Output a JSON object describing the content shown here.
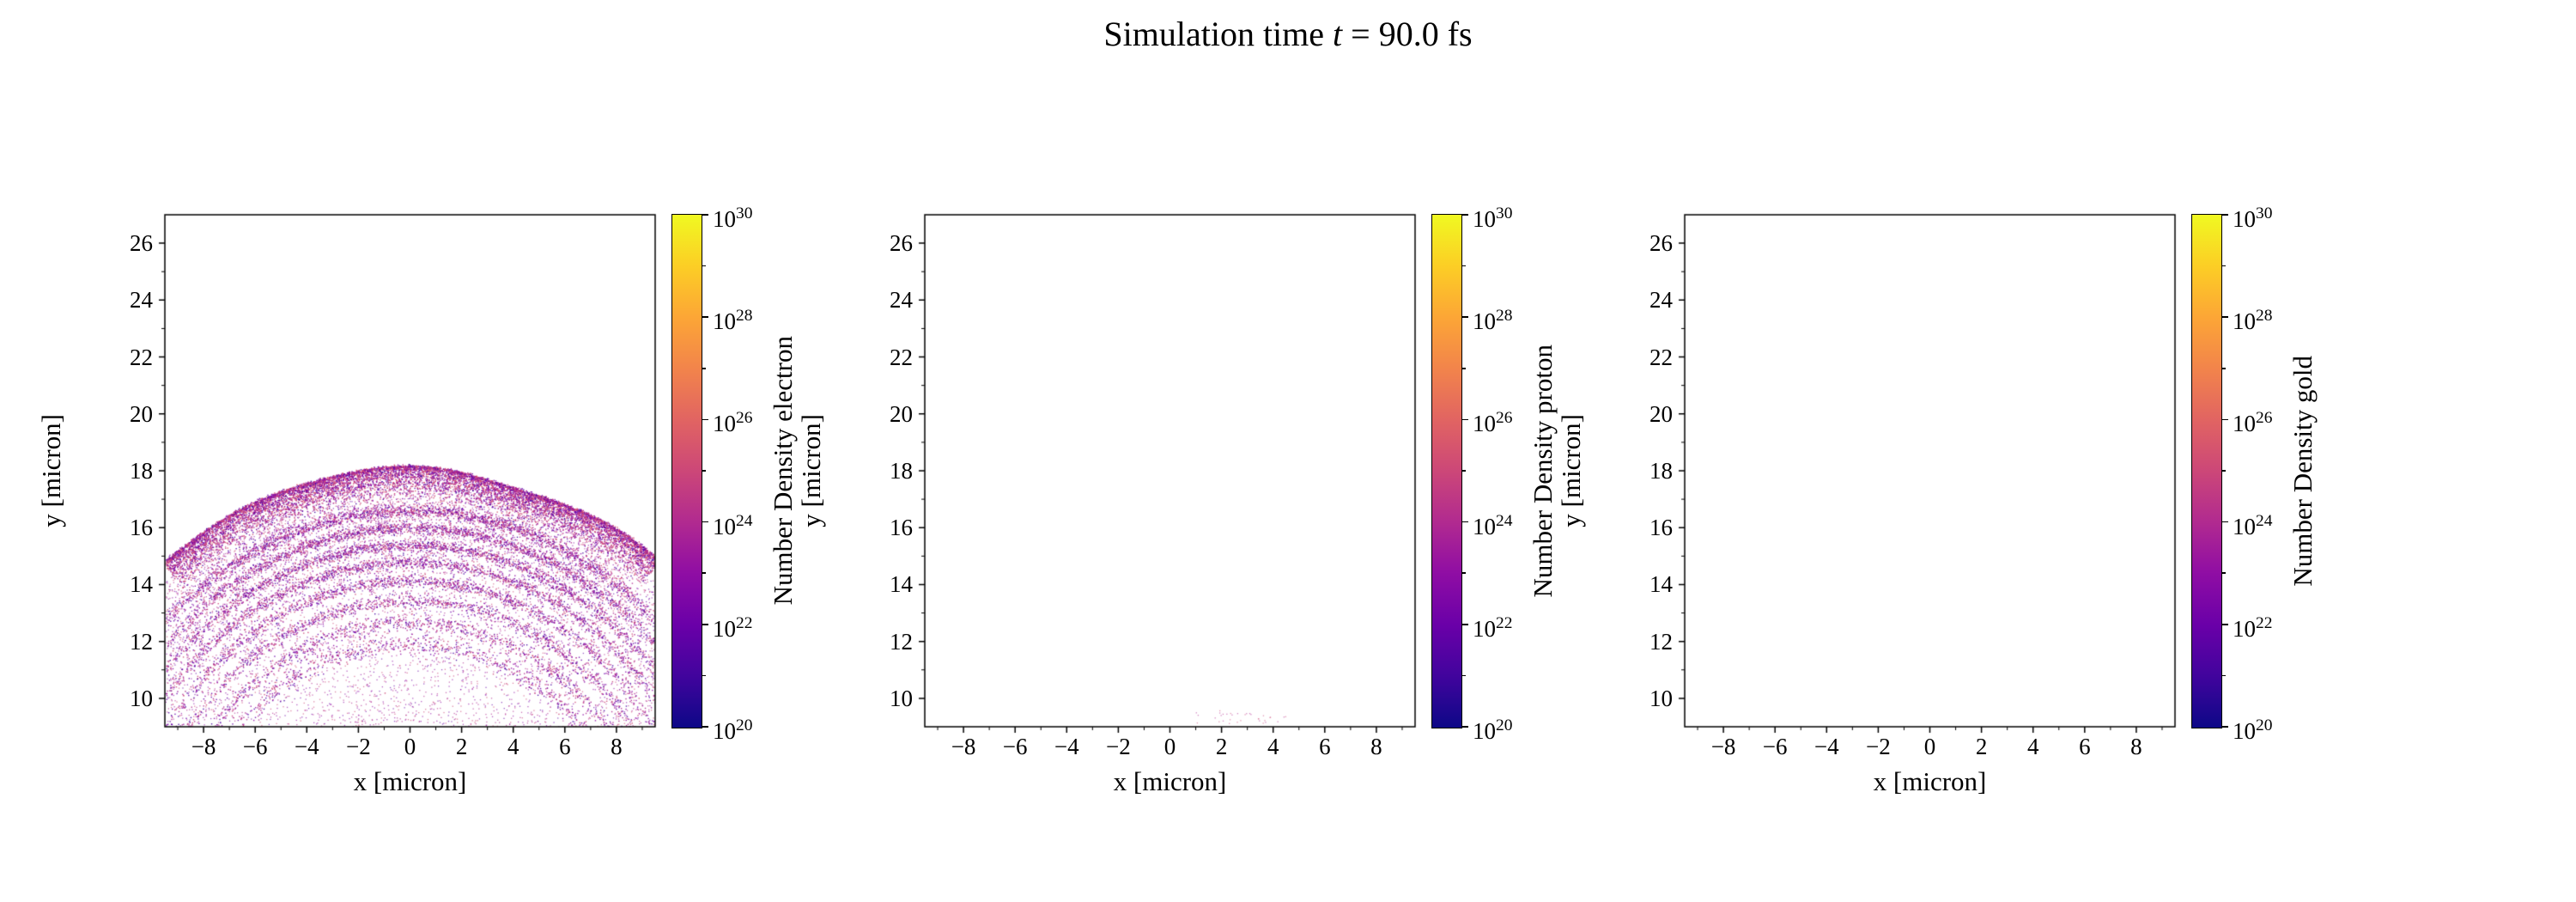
{
  "page": {
    "title": {
      "prefix": "Simulation time ",
      "variable": "t",
      "suffix": " = 90.0 fs"
    },
    "background": "#ffffff"
  },
  "colormap": {
    "name": "plasma",
    "stops": [
      "#0d0887",
      "#41049d",
      "#6a00a8",
      "#8f0da4",
      "#b12a90",
      "#cc4778",
      "#e16462",
      "#f2844b",
      "#fca636",
      "#fcce25",
      "#f0f921"
    ]
  },
  "chart_data": [
    {
      "type": "scatter",
      "species": "electron",
      "xlabel": "x [micron]",
      "ylabel": "y [micron]",
      "xlim": [
        -9.5,
        9.5
      ],
      "ylim": [
        9,
        27
      ],
      "xticks": [
        -8,
        -6,
        -4,
        -2,
        0,
        2,
        4,
        6,
        8
      ],
      "yticks": [
        10,
        12,
        14,
        16,
        18,
        20,
        22,
        24,
        26
      ],
      "grid": false,
      "colorbar": {
        "label": "Number Density electron",
        "scale": "log",
        "tick_exponents": [
          20,
          22,
          24,
          26,
          28,
          30
        ],
        "minor_exponents": [
          21,
          23,
          25,
          27,
          29
        ],
        "range_exponents": [
          20,
          30
        ]
      },
      "content": {
        "description": "Dome-shaped electron density cloud: dense wiggly cap band near y=17.0-18.4 spanning x=-7..7, concentric arc shells below it converging toward x=+/-9, sparse haze filling the dome interior down to y=9",
        "dome_center": [
          0,
          3
        ],
        "palette": [
          "#6a00a8",
          "#8f0da4",
          "#b12a90",
          "#cc4778",
          "#d8576b",
          "#46039f"
        ],
        "band": {
          "radius": 15.2,
          "edge_sigma": 0.5,
          "points": 9500,
          "color_weights": [
            2,
            2,
            3,
            3,
            1,
            1
          ]
        },
        "arcs": [
          {
            "radius": 13.6,
            "sigma": 0.12,
            "points": 2600
          },
          {
            "radius": 13.0,
            "sigma": 0.11,
            "points": 2300
          },
          {
            "radius": 12.4,
            "sigma": 0.11,
            "points": 2100
          },
          {
            "radius": 11.8,
            "sigma": 0.11,
            "points": 1900
          },
          {
            "radius": 11.15,
            "sigma": 0.12,
            "points": 1600
          },
          {
            "radius": 10.45,
            "sigma": 0.13,
            "points": 1300
          },
          {
            "radius": 9.7,
            "sigma": 0.15,
            "points": 1000
          },
          {
            "radius": 8.95,
            "sigma": 0.18,
            "points": 750
          }
        ],
        "arc_color_weights": [
          2,
          2,
          3,
          2,
          0,
          1
        ],
        "haze": {
          "points": 6500,
          "r_range": [
            6.2,
            14.6
          ],
          "color_weights": [
            1,
            2,
            3,
            2,
            0,
            0
          ],
          "alpha": 0.65
        }
      }
    },
    {
      "type": "scatter",
      "species": "proton",
      "xlabel": "x [micron]",
      "ylabel": "y [micron]",
      "xlim": [
        -9.5,
        9.5
      ],
      "ylim": [
        9,
        27
      ],
      "xticks": [
        -8,
        -6,
        -4,
        -2,
        0,
        2,
        4,
        6,
        8
      ],
      "yticks": [
        10,
        12,
        14,
        16,
        18,
        20,
        22,
        24,
        26
      ],
      "grid": false,
      "colorbar": {
        "label": "Number Density proton",
        "scale": "log",
        "tick_exponents": [
          20,
          22,
          24,
          26,
          28,
          30
        ],
        "minor_exponents": [
          21,
          23,
          25,
          27,
          29
        ],
        "range_exponents": [
          20,
          30
        ]
      },
      "content": {
        "description": "Nearly empty panel; only a faint sparse trace of dots near the bottom around x=1..4.5, y=9.1-9.6",
        "specks": {
          "points": 34,
          "x_range": [
            1.0,
            4.5
          ],
          "y_range": [
            9.1,
            9.6
          ],
          "colors": [
            "#b12a90",
            "#cc4778"
          ],
          "alpha": 0.55
        }
      }
    },
    {
      "type": "scatter",
      "species": "gold",
      "xlabel": "x [micron]",
      "ylabel": "y [micron]",
      "xlim": [
        -9.5,
        9.5
      ],
      "ylim": [
        9,
        27
      ],
      "xticks": [
        -8,
        -6,
        -4,
        -2,
        0,
        2,
        4,
        6,
        8
      ],
      "yticks": [
        10,
        12,
        14,
        16,
        18,
        20,
        22,
        24,
        26
      ],
      "grid": false,
      "colorbar": {
        "label": "Number Density gold",
        "scale": "log",
        "tick_exponents": [
          20,
          22,
          24,
          26,
          28,
          30
        ],
        "minor_exponents": [
          21,
          23,
          25,
          27,
          29
        ],
        "range_exponents": [
          20,
          30
        ]
      },
      "content": null
    }
  ]
}
